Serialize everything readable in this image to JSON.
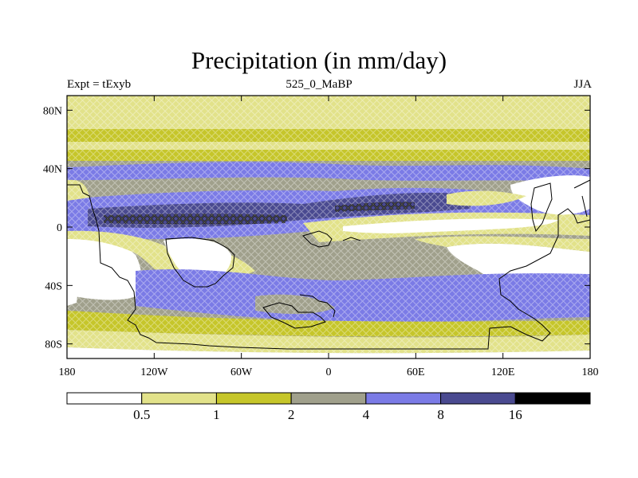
{
  "title": "Precipitation (in mm/day)",
  "left_label": "Expt = tExyb",
  "center_label": "525_0_MaBP",
  "right_label": "JJA",
  "map": {
    "lon_range": [
      -180,
      180
    ],
    "lat_range": [
      -90,
      90
    ],
    "lat_ticks": [
      {
        "value": 80,
        "label": "80N"
      },
      {
        "value": 40,
        "label": "40N"
      },
      {
        "value": 0,
        "label": "0"
      },
      {
        "value": -40,
        "label": "40S"
      },
      {
        "value": -80,
        "label": "80S"
      }
    ],
    "lon_ticks": [
      {
        "value": -180,
        "label": "180"
      },
      {
        "value": -120,
        "label": "120W"
      },
      {
        "value": -60,
        "label": "60W"
      },
      {
        "value": 0,
        "label": "0"
      },
      {
        "value": 60,
        "label": "60E"
      },
      {
        "value": 120,
        "label": "120E"
      },
      {
        "value": 180,
        "label": "180"
      }
    ]
  },
  "colorbar": {
    "levels": [
      "0.5",
      "1",
      "2",
      "4",
      "8",
      "16"
    ],
    "colors": [
      "#ffffff",
      "#e2e28a",
      "#c6c62a",
      "#a0a08c",
      "#7b7be6",
      "#4a4a90",
      "#000000"
    ]
  }
}
